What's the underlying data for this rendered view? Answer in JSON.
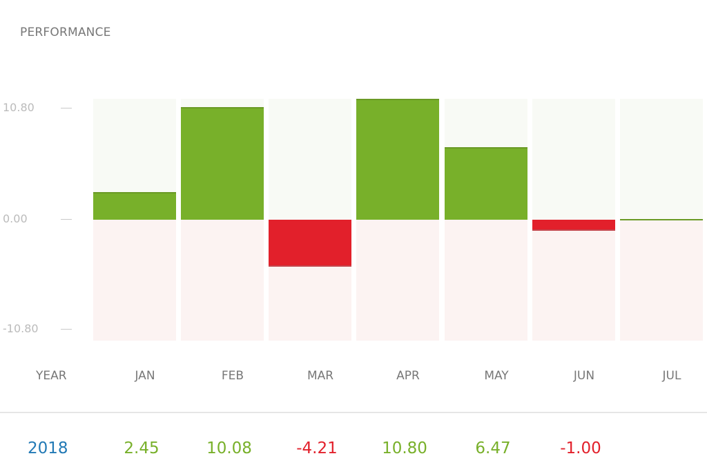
{
  "title": "PERFORMANCE",
  "y_ticks": [
    "10.80",
    "0.00",
    "-10.80"
  ],
  "x_header": "YEAR",
  "row": {
    "year": "2018"
  },
  "colors": {
    "positive": "#78b02a",
    "negative": "#e2202b",
    "year": "#2179b5",
    "label": "#777777"
  },
  "chart_data": {
    "type": "bar",
    "title": "PERFORMANCE",
    "xlabel": "",
    "ylabel": "",
    "categories": [
      "JAN",
      "FEB",
      "MAR",
      "APR",
      "MAY",
      "JUN",
      "JUL"
    ],
    "series": [
      {
        "name": "2018",
        "values": [
          2.45,
          10.08,
          -4.21,
          10.8,
          6.47,
          -1.0,
          0.0
        ]
      }
    ],
    "display_values": [
      "2.45",
      "10.08",
      "-4.21",
      "10.80",
      "6.47",
      "-1.00",
      ""
    ],
    "ylim": [
      -10.8,
      10.8
    ],
    "yticks": [
      10.8,
      0.0,
      -10.8
    ],
    "grid": false,
    "legend": "none"
  }
}
